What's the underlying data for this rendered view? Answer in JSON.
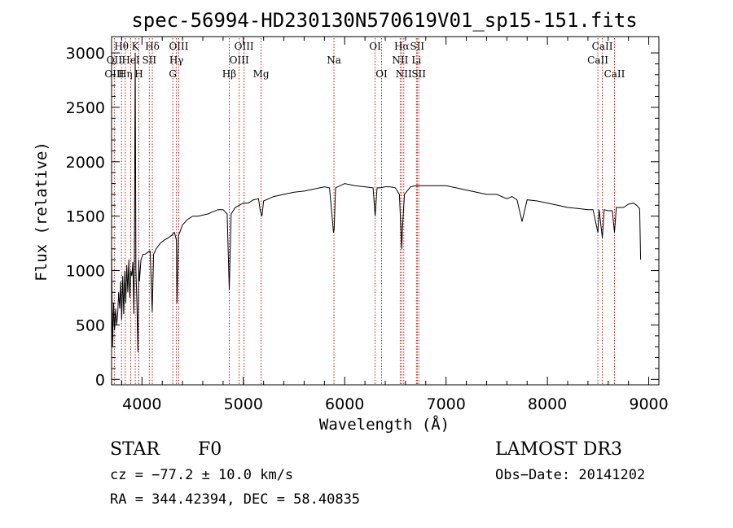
{
  "chart_data": {
    "type": "line",
    "title": "spec-56994-HD230130N570619V01_sp15-151.fits",
    "xlabel": "Wavelength (Å)",
    "ylabel": "Flux (relative)",
    "xlim": [
      3700,
      9100
    ],
    "ylim": [
      -50,
      3150
    ],
    "x_ticks": [
      4000,
      5000,
      6000,
      7000,
      8000,
      9000
    ],
    "x_tick_labels": [
      "4000",
      "5000",
      "6000",
      "7000",
      "8000",
      "9000"
    ],
    "y_ticks": [
      0,
      500,
      1000,
      1500,
      2000,
      2500,
      3000
    ],
    "y_tick_labels": [
      "0",
      "500",
      "1000",
      "1500",
      "2000",
      "2500",
      "3000"
    ],
    "line_color": "#000000",
    "marker_color": "#b22222",
    "series": [
      {
        "name": "spectrum",
        "x": [
          3700,
          3710,
          3720,
          3730,
          3740,
          3750,
          3760,
          3770,
          3780,
          3790,
          3800,
          3810,
          3820,
          3830,
          3840,
          3850,
          3860,
          3870,
          3880,
          3890,
          3900,
          3910,
          3920,
          3925,
          3933,
          3940,
          3950,
          3960,
          3968,
          3975,
          3990,
          4010,
          4030,
          4060,
          4080,
          4101,
          4115,
          4140,
          4180,
          4220,
          4260,
          4300,
          4320,
          4340,
          4345,
          4360,
          4400,
          4450,
          4500,
          4550,
          4600,
          4650,
          4700,
          4750,
          4800,
          4840,
          4861,
          4880,
          4920,
          4960,
          5000,
          5050,
          5100,
          5150,
          5167,
          5183,
          5200,
          5300,
          5400,
          5500,
          5600,
          5700,
          5800,
          5850,
          5890,
          5896,
          5910,
          6000,
          6100,
          6200,
          6280,
          6300,
          6320,
          6350,
          6400,
          6450,
          6500,
          6540,
          6563,
          6570,
          6590,
          6650,
          6700,
          6750,
          6800,
          6900,
          7000,
          7100,
          7200,
          7300,
          7400,
          7500,
          7600,
          7650,
          7700,
          7750,
          7800,
          7900,
          8000,
          8100,
          8200,
          8300,
          8400,
          8450,
          8498,
          8510,
          8542,
          8560,
          8600,
          8640,
          8662,
          8680,
          8750,
          8800,
          8850,
          8880,
          8900,
          8910,
          8920
        ],
        "y": [
          1200,
          300,
          700,
          450,
          650,
          500,
          600,
          800,
          650,
          900,
          550,
          950,
          600,
          1000,
          700,
          1050,
          800,
          1100,
          750,
          1000,
          950,
          1080,
          600,
          1150,
          3000,
          1000,
          700,
          250,
          1100,
          900,
          1100,
          1150,
          1150,
          1170,
          1180,
          620,
          1150,
          1200,
          1250,
          1280,
          1300,
          1330,
          1350,
          1280,
          700,
          1320,
          1420,
          1470,
          1500,
          1500,
          1510,
          1520,
          1540,
          1560,
          1560,
          1520,
          820,
          1520,
          1580,
          1600,
          1620,
          1620,
          1650,
          1660,
          1550,
          1500,
          1640,
          1680,
          1700,
          1720,
          1730,
          1750,
          1770,
          1760,
          1350,
          1380,
          1760,
          1800,
          1780,
          1770,
          1760,
          1500,
          1760,
          1760,
          1770,
          1770,
          1760,
          1700,
          1200,
          1400,
          1700,
          1770,
          1780,
          1780,
          1780,
          1780,
          1780,
          1760,
          1740,
          1720,
          1700,
          1700,
          1660,
          1680,
          1650,
          1450,
          1650,
          1640,
          1620,
          1600,
          1580,
          1570,
          1560,
          1560,
          1350,
          1560,
          1300,
          1560,
          1550,
          1550,
          1350,
          1580,
          1580,
          1610,
          1620,
          1600,
          1580,
          1570,
          1100
        ]
      }
    ],
    "annotations": [
      {
        "text": "Hθ",
        "x": 3798,
        "row": 1
      },
      {
        "text": "OII",
        "x": 3727,
        "row": 2
      },
      {
        "text": "OIII",
        "x": 3727,
        "row": 3
      },
      {
        "text": "K",
        "x": 3934,
        "row": 1
      },
      {
        "text": "Hδ",
        "x": 4102,
        "row": 1
      },
      {
        "text": "HeI",
        "x": 3889,
        "row": 2
      },
      {
        "text": "SII",
        "x": 4072,
        "row": 2
      },
      {
        "text": "Hη",
        "x": 3835,
        "row": 3
      },
      {
        "text": "H",
        "x": 3969,
        "row": 3
      },
      {
        "text": "OIII",
        "x": 4363,
        "row": 1
      },
      {
        "text": "Hγ",
        "x": 4340,
        "row": 2
      },
      {
        "text": "G",
        "x": 4304,
        "row": 3
      },
      {
        "text": "OIII",
        "x": 5007,
        "row": 1
      },
      {
        "text": "OIII",
        "x": 4959,
        "row": 2
      },
      {
        "text": "Hβ",
        "x": 4861,
        "row": 3
      },
      {
        "text": "Mg",
        "x": 5175,
        "row": 3
      },
      {
        "text": "Na",
        "x": 5894,
        "row": 2
      },
      {
        "text": "OI",
        "x": 6300,
        "row": 1
      },
      {
        "text": "OI",
        "x": 6364,
        "row": 3
      },
      {
        "text": "Hα",
        "x": 6563,
        "row": 1
      },
      {
        "text": "SII",
        "x": 6716,
        "row": 1
      },
      {
        "text": "NII",
        "x": 6548,
        "row": 2
      },
      {
        "text": "Li",
        "x": 6708,
        "row": 2
      },
      {
        "text": "NII",
        "x": 6583,
        "row": 3
      },
      {
        "text": "SII",
        "x": 6731,
        "row": 3
      },
      {
        "text": "CaII",
        "x": 8542,
        "row": 1
      },
      {
        "text": "CaII",
        "x": 8498,
        "row": 2
      },
      {
        "text": "CaII",
        "x": 8662,
        "row": 3
      }
    ],
    "marker_lines": [
      3727,
      3798,
      3835,
      3889,
      3934,
      3969,
      4072,
      4102,
      4304,
      4340,
      4363,
      4861,
      4959,
      5007,
      5175,
      5894,
      6300,
      6364,
      6548,
      6563,
      6583,
      6708,
      6716,
      6731,
      8498,
      8542,
      8662
    ]
  },
  "info": {
    "class_label": "STAR",
    "subclass": "F0",
    "survey": "LAMOST DR3",
    "velocity": "cz = −77.2 ± 10.0 km/s",
    "obs_date": "Obs−Date: 20141202",
    "coords": "RA = 344.42394, DEC =  58.40835"
  }
}
